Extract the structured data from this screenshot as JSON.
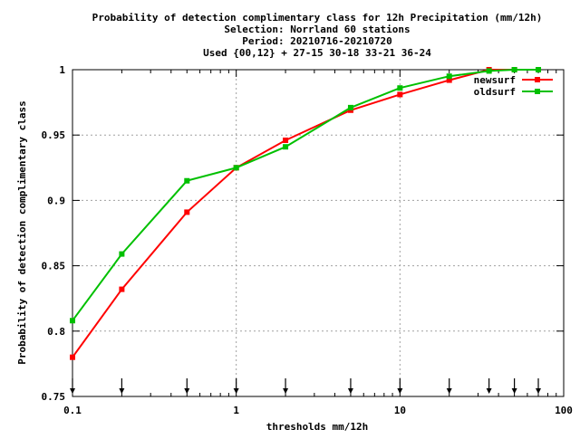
{
  "chart_data": {
    "type": "line",
    "title": [
      "Probability of detection complimentary class  for 12h Precipitation (mm/12h)",
      "Selection: Norrland     60 stations",
      "Period: 20210716-20210720",
      "Used {00,12} + 27-15 30-18 33-21 36-24"
    ],
    "xlabel": "thresholds mm/12h",
    "ylabel": "Probability of detection complimentary class",
    "x_scale": "log",
    "xlim": [
      0.1,
      100
    ],
    "ylim": [
      0.75,
      1.0
    ],
    "x_ticks": [
      0.1,
      1,
      10,
      100
    ],
    "x_tick_labels": [
      "0.1",
      "1",
      "10",
      "100"
    ],
    "y_ticks": [
      0.75,
      0.8,
      0.85,
      0.9,
      0.95,
      1.0
    ],
    "y_tick_labels": [
      "0.75",
      "0.8",
      "0.85",
      "0.9",
      "0.95",
      "1"
    ],
    "grid": true,
    "legend_position": "top-right",
    "threshold_markers": [
      0.1,
      0.2,
      0.5,
      1,
      2,
      5,
      10,
      20,
      35,
      50,
      70
    ],
    "series": [
      {
        "name": "newsurf",
        "color": "#ff0000",
        "x": [
          0.1,
          0.2,
          0.5,
          1,
          2,
          5,
          10,
          20,
          35,
          50,
          70
        ],
        "values": [
          0.78,
          0.832,
          0.891,
          0.925,
          0.946,
          0.969,
          0.981,
          0.992,
          1.0,
          1.0,
          1.0
        ]
      },
      {
        "name": "oldsurf",
        "color": "#00c000",
        "x": [
          0.1,
          0.2,
          0.5,
          1,
          2,
          5,
          10,
          20,
          35,
          50,
          70
        ],
        "values": [
          0.808,
          0.859,
          0.915,
          0.925,
          0.941,
          0.971,
          0.986,
          0.995,
          0.999,
          1.0,
          1.0
        ]
      }
    ]
  }
}
